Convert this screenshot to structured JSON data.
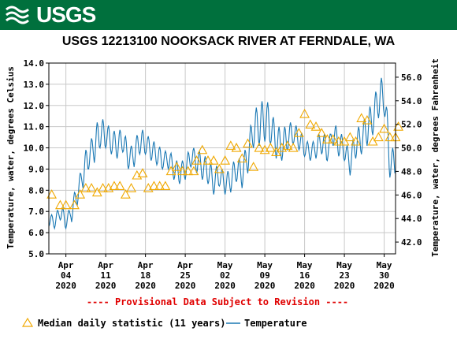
{
  "header": {
    "logo_text": "USGS",
    "bar_color": "#00703d"
  },
  "chart_data": {
    "type": "line",
    "title": "USGS 12213100 NOOKSACK RIVER AT FERNDALE, WA",
    "ylabel": "Temperature, water, degrees Celsius",
    "y2label": "Temperature, water, degrees Fahrenheit",
    "ylim": [
      5.0,
      14.0
    ],
    "y_ticks": [
      "5.0",
      "6.0",
      "7.0",
      "8.0",
      "9.0",
      "10.0",
      "11.0",
      "12.0",
      "13.0",
      "14.0"
    ],
    "y2lim_f": [
      41.0,
      57.2
    ],
    "y2_ticks": [
      "42.0",
      "44.0",
      "46.0",
      "48.0",
      "50.0",
      "52.0",
      "54.0",
      "56.0"
    ],
    "xlim_days": [
      0,
      61
    ],
    "x_ticks": [
      {
        "day": 3,
        "lines": [
          "Apr",
          "04",
          "2020"
        ]
      },
      {
        "day": 10,
        "lines": [
          "Apr",
          "11",
          "2020"
        ]
      },
      {
        "day": 17,
        "lines": [
          "Apr",
          "18",
          "2020"
        ]
      },
      {
        "day": 24,
        "lines": [
          "Apr",
          "25",
          "2020"
        ]
      },
      {
        "day": 31,
        "lines": [
          "May",
          "02",
          "2020"
        ]
      },
      {
        "day": 38,
        "lines": [
          "May",
          "09",
          "2020"
        ]
      },
      {
        "day": 45,
        "lines": [
          "May",
          "16",
          "2020"
        ]
      },
      {
        "day": 52,
        "lines": [
          "May",
          "23",
          "2020"
        ]
      },
      {
        "day": 59,
        "lines": [
          "May",
          "30",
          "2020"
        ]
      }
    ],
    "grid": true,
    "provisional_note": "---- Provisional Data Subject to Revision ----",
    "legend": [
      {
        "label": "Median daily statistic (11 years)",
        "marker": "triangle",
        "color": "#f0a800"
      },
      {
        "label": "Temperature",
        "marker": "line",
        "color": "#1a78b4"
      }
    ],
    "series": [
      {
        "name": "Temperature",
        "color": "#1a78b4",
        "daily_mean": [
          6.6,
          6.5,
          7.0,
          6.5,
          7.0,
          7.8,
          8.8,
          9.6,
          10.1,
          10.7,
          10.6,
          10.3,
          10.1,
          10.4,
          9.5,
          9.7,
          10.3,
          10.2,
          9.9,
          9.7,
          9.4,
          9.5,
          9.0,
          8.8,
          9.0,
          9.6,
          9.4,
          9.1,
          8.9,
          8.4,
          8.7,
          8.3,
          8.5,
          9.0,
          8.8,
          9.6,
          10.9,
          11.1,
          11.3,
          11.0,
          10.3,
          10.1,
          10.5,
          10.7,
          10.4,
          10.0,
          9.8,
          10.0,
          10.3,
          9.8,
          10.7,
          10.2,
          9.9,
          9.3,
          10.2,
          10.4,
          10.9,
          11.4,
          12.3,
          12.5,
          9.3
        ],
        "daily_amp": [
          0.3,
          0.3,
          0.4,
          0.3,
          0.5,
          0.5,
          0.7,
          0.6,
          0.8,
          0.7,
          0.6,
          0.6,
          0.6,
          0.6,
          0.5,
          0.6,
          0.6,
          0.5,
          0.5,
          0.5,
          0.4,
          0.5,
          0.5,
          0.5,
          0.5,
          0.5,
          0.6,
          0.6,
          0.6,
          0.6,
          0.5,
          0.5,
          0.6,
          0.6,
          0.7,
          0.8,
          0.9,
          1.0,
          1.0,
          0.8,
          0.8,
          0.7,
          0.6,
          0.5,
          0.5,
          0.4,
          0.4,
          0.5,
          0.6,
          0.4,
          0.6,
          0.6,
          0.5,
          0.6,
          0.7,
          0.7,
          0.8,
          0.8,
          0.9,
          0.9,
          0.7
        ]
      },
      {
        "name": "Median daily statistic (11 years)",
        "color": "#f0a800",
        "points": [
          [
            0.5,
            7.8
          ],
          [
            2.0,
            7.3
          ],
          [
            3.0,
            7.3
          ],
          [
            4.5,
            7.3
          ],
          [
            5.5,
            7.8
          ],
          [
            6.5,
            8.1
          ],
          [
            7.5,
            8.1
          ],
          [
            8.5,
            7.9
          ],
          [
            9.5,
            8.1
          ],
          [
            10.5,
            8.1
          ],
          [
            11.5,
            8.2
          ],
          [
            12.5,
            8.2
          ],
          [
            13.5,
            7.8
          ],
          [
            14.5,
            8.1
          ],
          [
            15.5,
            8.7
          ],
          [
            16.5,
            8.8
          ],
          [
            17.5,
            8.1
          ],
          [
            18.5,
            8.2
          ],
          [
            19.5,
            8.2
          ],
          [
            20.5,
            8.2
          ],
          [
            21.5,
            8.9
          ],
          [
            22.5,
            9.1
          ],
          [
            23.5,
            8.9
          ],
          [
            24.5,
            8.9
          ],
          [
            25.5,
            8.9
          ],
          [
            26.0,
            9.4
          ],
          [
            27.0,
            9.9
          ],
          [
            28.0,
            9.4
          ],
          [
            29.0,
            9.4
          ],
          [
            30.0,
            9.0
          ],
          [
            31.0,
            9.4
          ],
          [
            32.0,
            10.1
          ],
          [
            33.0,
            10.0
          ],
          [
            34.0,
            9.5
          ],
          [
            35.0,
            10.2
          ],
          [
            36.0,
            9.1
          ],
          [
            37.0,
            10.0
          ],
          [
            38.0,
            9.9
          ],
          [
            39.0,
            10.0
          ],
          [
            40.0,
            9.8
          ],
          [
            41.0,
            10.0
          ],
          [
            42.0,
            10.1
          ],
          [
            43.0,
            10.0
          ],
          [
            44.0,
            10.7
          ],
          [
            45.0,
            11.6
          ],
          [
            46.0,
            11.1
          ],
          [
            47.0,
            11.0
          ],
          [
            48.0,
            10.7
          ],
          [
            49.0,
            10.4
          ],
          [
            50.0,
            10.4
          ],
          [
            51.0,
            10.3
          ],
          [
            52.0,
            10.3
          ],
          [
            53.0,
            10.5
          ],
          [
            54.0,
            10.3
          ],
          [
            55.0,
            11.4
          ],
          [
            56.0,
            11.3
          ],
          [
            57.0,
            10.3
          ],
          [
            58.0,
            10.5
          ],
          [
            59.0,
            10.9
          ],
          [
            60.0,
            10.5
          ],
          [
            61.0,
            10.5
          ],
          [
            61.5,
            11.0
          ]
        ]
      }
    ]
  }
}
